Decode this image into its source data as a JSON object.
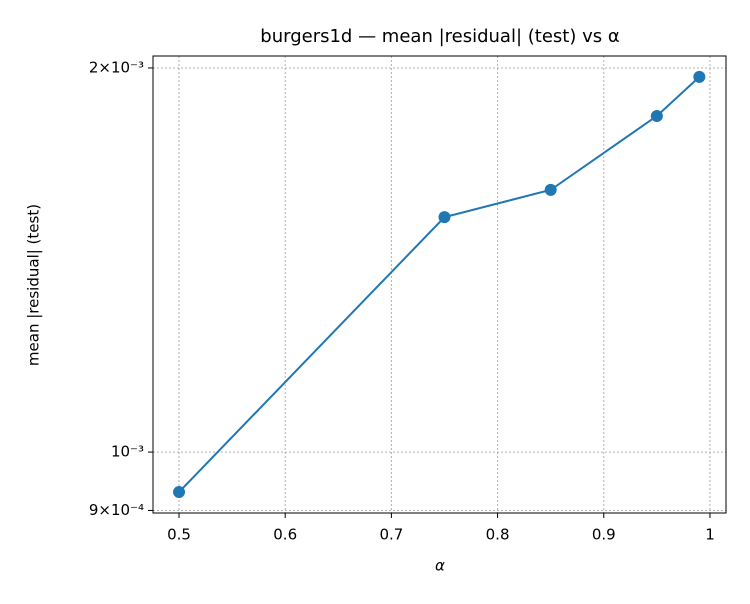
{
  "chart_data": {
    "type": "line",
    "title": "burgers1d — mean |residual| (test) vs α",
    "x_label": "α",
    "y_label": "mean |residual| (test)",
    "x": [
      0.5,
      0.75,
      0.85,
      0.95,
      0.99
    ],
    "series": [
      {
        "name": "mean |residual| (test)",
        "color": "#1f77b4",
        "values": [
          0.0009304,
          0.001528,
          0.001605,
          0.001834,
          0.001968
        ]
      }
    ],
    "xlim": [
      0.4755,
      1.0151
    ],
    "xticks": [
      0.5,
      0.6,
      0.7,
      0.8,
      0.9,
      1.0
    ],
    "ylim": [
      0.0008959,
      0.0020436
    ],
    "yticks": [
      {
        "value": 0.0009,
        "label": "9×10⁻⁴"
      },
      {
        "value": 0.001,
        "label": "10⁻³"
      },
      {
        "value": 0.002,
        "label": "2×10⁻³"
      }
    ],
    "y_scale": "log",
    "grid": true
  }
}
